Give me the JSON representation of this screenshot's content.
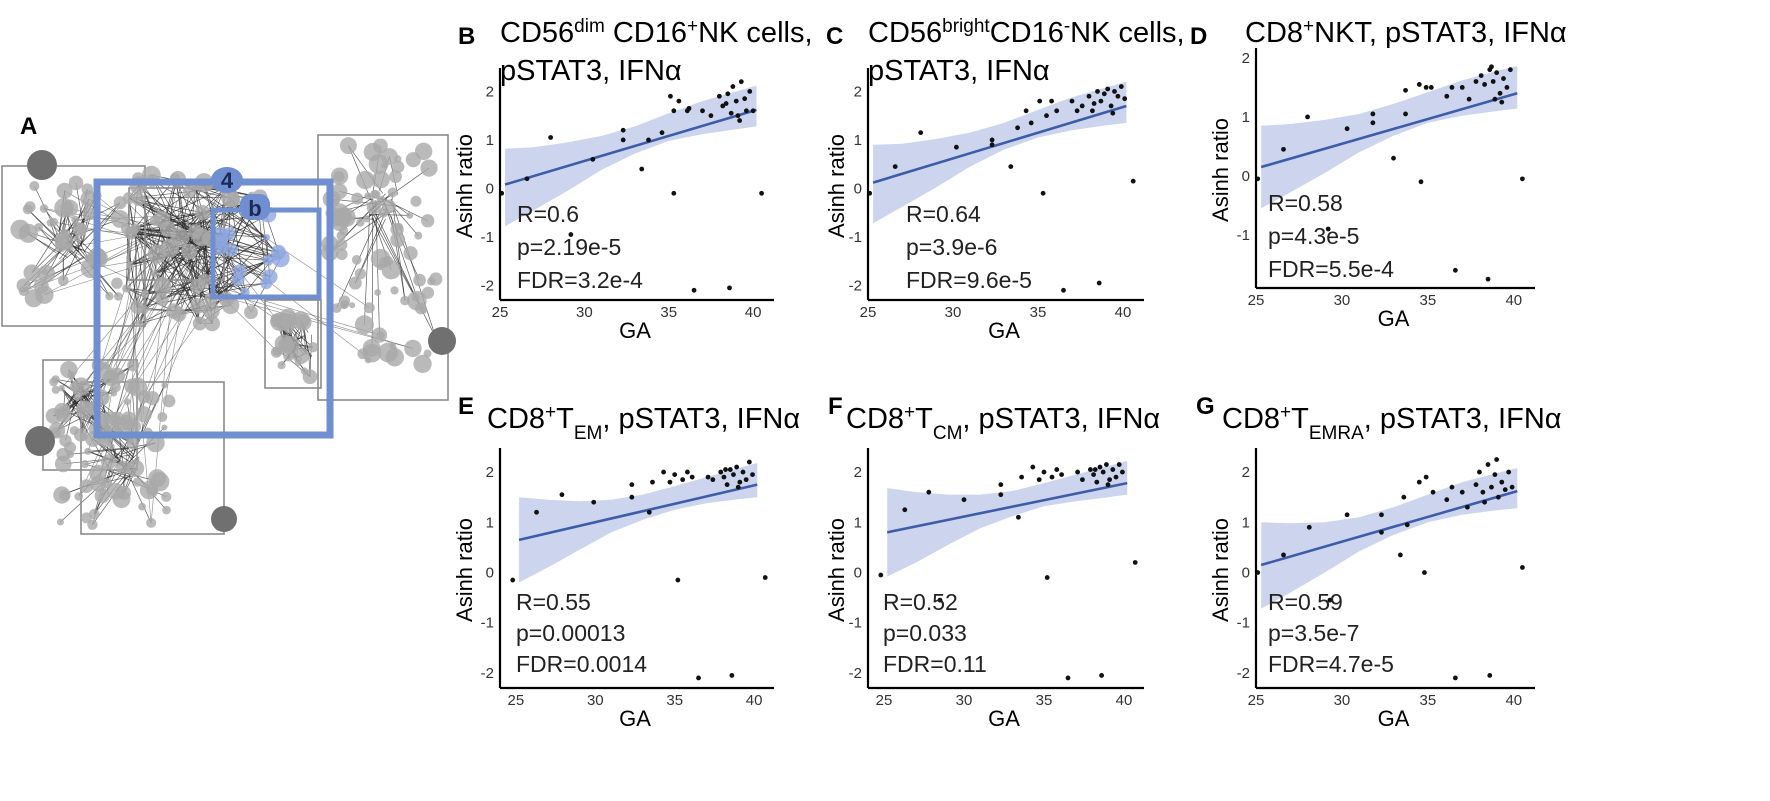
{
  "figure": {
    "domain": "Chart"
  },
  "panel_a": {
    "label": "A",
    "cluster_badge": "4",
    "inner_badge": "b",
    "colors": {
      "highlight": "#6f8fd1",
      "node": "#a9a9a9",
      "node_dark": "#707070",
      "edge": "#2a2a2a",
      "box": "#8a8a8a",
      "highlight_node": "#8fa6e0"
    }
  },
  "style": {
    "ribbon": "#c9d3ec",
    "line": "#3d5da8",
    "point": "#111111"
  },
  "chart_data": [
    {
      "id": "B",
      "panel_label": "B",
      "type": "scatter",
      "title": {
        "line1": "CD56",
        "line1_sup": "dim",
        "line1_mid": " CD16",
        "line1_sup2": "+",
        "line1_end": "NK cells,",
        "line2": "pSTAT3, IFNα"
      },
      "xlabel": "GA",
      "ylabel": "Asinh ratio",
      "xlim": [
        25,
        41
      ],
      "ylim": [
        -2.3,
        2.4
      ],
      "xticks": [
        25,
        30,
        35,
        40
      ],
      "yticks": [
        -2,
        -1,
        0,
        1,
        2
      ],
      "fit": {
        "x": [
          25.3,
          40.2
        ],
        "y": [
          0.08,
          1.62
        ]
      },
      "ribbon": {
        "x": [
          25.3,
          27,
          29,
          31,
          33,
          35,
          37,
          39,
          40.2
        ],
        "lo": [
          -0.78,
          -0.45,
          -0.05,
          0.38,
          0.72,
          0.98,
          1.12,
          1.22,
          1.28
        ],
        "hi": [
          0.82,
          0.85,
          0.95,
          1.08,
          1.28,
          1.55,
          1.8,
          2.0,
          2.12
        ]
      },
      "stats": {
        "r": "R=0.6",
        "p": "p=2.19e-5",
        "fdr": "FDR=3.2e-4"
      },
      "points": [
        [
          25.1,
          -0.1
        ],
        [
          26.6,
          0.2
        ],
        [
          28,
          1.05
        ],
        [
          29.2,
          -0.95
        ],
        [
          30.5,
          0.6
        ],
        [
          32.3,
          1.2
        ],
        [
          32.3,
          1.0
        ],
        [
          33.4,
          0.4
        ],
        [
          33.8,
          1.0
        ],
        [
          34.6,
          1.15
        ],
        [
          35.1,
          1.9
        ],
        [
          35.3,
          1.6
        ],
        [
          35.3,
          -0.1
        ],
        [
          35.6,
          1.8
        ],
        [
          36.1,
          1.6
        ],
        [
          36.2,
          1.65
        ],
        [
          36.5,
          -2.1
        ],
        [
          37.0,
          1.6
        ],
        [
          37.5,
          1.5
        ],
        [
          38.0,
          1.9
        ],
        [
          38.2,
          1.7
        ],
        [
          38.5,
          1.95
        ],
        [
          38.7,
          1.55
        ],
        [
          38.8,
          2.1
        ],
        [
          39.0,
          1.8
        ],
        [
          39.2,
          1.4
        ],
        [
          39.3,
          2.2
        ],
        [
          39.5,
          1.85
        ],
        [
          39.6,
          1.6
        ],
        [
          39.8,
          2.0
        ],
        [
          40.0,
          1.6
        ],
        [
          38.6,
          -2.05
        ],
        [
          40.5,
          -0.1
        ],
        [
          38.4,
          1.75
        ],
        [
          39.1,
          1.5
        ]
      ]
    },
    {
      "id": "C",
      "panel_label": "C",
      "type": "scatter",
      "title": {
        "line1": "CD56",
        "line1_sup": "bright",
        "line1_mid": "CD16",
        "line1_sup2": "-",
        "line1_end": "NK cells,",
        "line2": "pSTAT3, IFNα"
      },
      "xlabel": "GA",
      "ylabel": "Asinh ratio",
      "xlim": [
        25,
        41
      ],
      "ylim": [
        -2.3,
        2.4
      ],
      "xticks": [
        25,
        30,
        35,
        40
      ],
      "yticks": [
        -2,
        -1,
        0,
        1,
        2
      ],
      "fit": {
        "x": [
          25.3,
          40.2
        ],
        "y": [
          0.12,
          1.7
        ]
      },
      "ribbon": {
        "x": [
          25.3,
          27,
          29,
          31,
          33,
          35,
          37,
          39,
          40.2
        ],
        "lo": [
          -0.72,
          -0.38,
          0.02,
          0.45,
          0.8,
          1.05,
          1.2,
          1.3,
          1.35
        ],
        "hi": [
          0.9,
          0.92,
          1.02,
          1.15,
          1.35,
          1.62,
          1.88,
          2.08,
          2.2
        ]
      },
      "stats": {
        "r": "R=0.64",
        "p": "p=3.9e-6",
        "fdr": "FDR=9.6e-5"
      },
      "points": [
        [
          25.1,
          -0.1
        ],
        [
          26.6,
          0.45
        ],
        [
          28.1,
          1.15
        ],
        [
          30.2,
          0.85
        ],
        [
          32.3,
          0.9
        ],
        [
          32.3,
          1.0
        ],
        [
          33.4,
          0.45
        ],
        [
          33.8,
          1.25
        ],
        [
          34.3,
          1.6
        ],
        [
          34.6,
          1.35
        ],
        [
          35.1,
          1.8
        ],
        [
          35.3,
          -0.1
        ],
        [
          35.5,
          1.5
        ],
        [
          35.8,
          1.8
        ],
        [
          36.1,
          1.6
        ],
        [
          36.5,
          -2.1
        ],
        [
          37.0,
          1.8
        ],
        [
          37.3,
          1.6
        ],
        [
          37.6,
          1.7
        ],
        [
          38.0,
          1.9
        ],
        [
          38.3,
          1.75
        ],
        [
          38.5,
          2.0
        ],
        [
          38.7,
          1.8
        ],
        [
          38.9,
          1.95
        ],
        [
          39.1,
          2.05
        ],
        [
          39.3,
          1.7
        ],
        [
          39.5,
          2.0
        ],
        [
          39.7,
          1.9
        ],
        [
          39.9,
          2.1
        ],
        [
          40.1,
          1.85
        ],
        [
          38.6,
          -1.95
        ],
        [
          40.6,
          0.15
        ],
        [
          38.2,
          1.6
        ],
        [
          39.4,
          1.55
        ]
      ]
    },
    {
      "id": "D",
      "panel_label": "D",
      "type": "scatter",
      "title": {
        "line1": "CD8",
        "line1_sup": "+",
        "line1_mid": "NKT, pSTAT3, IFNα",
        "line1_sup2": "",
        "line1_end": "",
        "line2": ""
      },
      "xlabel": "GA",
      "ylabel": "Asinh ratio",
      "xlim": [
        25,
        41
      ],
      "ylim": [
        -1.9,
        2.1
      ],
      "xticks": [
        25,
        30,
        35,
        40
      ],
      "yticks": [
        -1,
        0,
        1,
        2
      ],
      "fit": {
        "x": [
          25.3,
          40.2
        ],
        "y": [
          0.15,
          1.4
        ]
      },
      "ribbon": {
        "x": [
          25.3,
          27,
          29,
          31,
          33,
          35,
          37,
          39,
          40.2
        ],
        "lo": [
          -0.55,
          -0.28,
          0.05,
          0.4,
          0.68,
          0.9,
          1.02,
          1.1,
          1.14
        ],
        "hi": [
          0.85,
          0.88,
          0.95,
          1.05,
          1.22,
          1.42,
          1.62,
          1.78,
          1.86
        ]
      },
      "stats": {
        "r": "R=0.58",
        "p": "p=4.3e-5",
        "fdr": "FDR=5.5e-4"
      },
      "points": [
        [
          25.1,
          -0.05
        ],
        [
          26.6,
          0.45
        ],
        [
          28.0,
          1.0
        ],
        [
          29.2,
          -0.9
        ],
        [
          30.3,
          0.8
        ],
        [
          31.8,
          0.9
        ],
        [
          31.8,
          1.05
        ],
        [
          33.0,
          0.3
        ],
        [
          33.7,
          1.45
        ],
        [
          33.7,
          1.05
        ],
        [
          34.5,
          1.55
        ],
        [
          34.9,
          1.5
        ],
        [
          34.6,
          -0.1
        ],
        [
          35.2,
          1.5
        ],
        [
          36.1,
          1.35
        ],
        [
          36.4,
          1.5
        ],
        [
          36.6,
          -1.6
        ],
        [
          37.0,
          1.5
        ],
        [
          37.4,
          1.3
        ],
        [
          37.8,
          1.6
        ],
        [
          38.1,
          1.7
        ],
        [
          38.3,
          1.55
        ],
        [
          38.6,
          1.8
        ],
        [
          38.8,
          1.6
        ],
        [
          39.0,
          1.75
        ],
        [
          39.2,
          1.4
        ],
        [
          39.4,
          1.65
        ],
        [
          39.6,
          1.5
        ],
        [
          38.9,
          1.3
        ],
        [
          39.8,
          1.8
        ],
        [
          38.5,
          -1.75
        ],
        [
          40.5,
          -0.05
        ],
        [
          39.3,
          1.25
        ],
        [
          38.7,
          1.85
        ]
      ]
    },
    {
      "id": "E",
      "panel_label": "E",
      "type": "scatter",
      "title": {
        "line1": "CD8",
        "line1_sup": "+",
        "line1_mid": "T",
        "line1_sub": "EM",
        "line1_end": ", pSTAT3, IFNα",
        "line2": ""
      },
      "xlabel": "GA",
      "ylabel": "Asinh ratio",
      "xlim": [
        24,
        41
      ],
      "ylim": [
        -2.3,
        2.4
      ],
      "xticks": [
        25,
        30,
        35,
        40
      ],
      "yticks": [
        -2,
        -1,
        0,
        1,
        2
      ],
      "fit": {
        "x": [
          25.2,
          40.2
        ],
        "y": [
          0.65,
          1.75
        ]
      },
      "ribbon": {
        "x": [
          25.2,
          27,
          29,
          31,
          33,
          35,
          37,
          39,
          40.2
        ],
        "lo": [
          -0.2,
          0.1,
          0.45,
          0.8,
          1.05,
          1.25,
          1.38,
          1.46,
          1.5
        ],
        "hi": [
          1.5,
          1.45,
          1.42,
          1.45,
          1.55,
          1.72,
          1.9,
          2.08,
          2.18
        ]
      },
      "stats": {
        "r": "R=0.55",
        "p": "p=0.00013",
        "fdr": "FDR=0.0014"
      },
      "points": [
        [
          24.8,
          -0.15
        ],
        [
          26.3,
          1.2
        ],
        [
          27.9,
          1.55
        ],
        [
          29.9,
          1.4
        ],
        [
          32.3,
          1.5
        ],
        [
          32.3,
          1.75
        ],
        [
          33.4,
          1.2
        ],
        [
          33.6,
          1.8
        ],
        [
          34.3,
          2.0
        ],
        [
          34.7,
          1.8
        ],
        [
          35.0,
          1.95
        ],
        [
          35.2,
          -0.15
        ],
        [
          35.5,
          1.85
        ],
        [
          35.8,
          2.0
        ],
        [
          36.1,
          1.9
        ],
        [
          36.5,
          -2.1
        ],
        [
          37.1,
          1.9
        ],
        [
          37.4,
          1.85
        ],
        [
          37.9,
          2.0
        ],
        [
          38.1,
          1.9
        ],
        [
          38.3,
          1.75
        ],
        [
          38.5,
          2.05
        ],
        [
          38.7,
          1.95
        ],
        [
          38.9,
          2.1
        ],
        [
          39.1,
          1.8
        ],
        [
          39.3,
          2.0
        ],
        [
          39.5,
          1.85
        ],
        [
          39.7,
          2.2
        ],
        [
          39.9,
          1.95
        ],
        [
          38.6,
          -2.05
        ],
        [
          40.7,
          -0.1
        ],
        [
          38.2,
          2.05
        ],
        [
          39.0,
          1.7
        ]
      ]
    },
    {
      "id": "F",
      "panel_label": "F",
      "type": "scatter",
      "title": {
        "line1": "CD8",
        "line1_sup": "+",
        "line1_mid": "T",
        "line1_sub": "CM",
        "line1_end": ", pSTAT3, IFNα",
        "line2": ""
      },
      "xlabel": "GA",
      "ylabel": "Asinh ratio",
      "xlim": [
        24,
        41
      ],
      "ylim": [
        -2.3,
        2.4
      ],
      "xticks": [
        25,
        30,
        35,
        40
      ],
      "yticks": [
        -2,
        -1,
        0,
        1,
        2
      ],
      "fit": {
        "x": [
          25.2,
          40.2
        ],
        "y": [
          0.8,
          1.78
        ]
      },
      "ribbon": {
        "x": [
          25.2,
          27,
          29,
          31,
          33,
          35,
          37,
          39,
          40.2
        ],
        "lo": [
          -0.08,
          0.2,
          0.55,
          0.88,
          1.12,
          1.32,
          1.42,
          1.5,
          1.55
        ],
        "hi": [
          1.68,
          1.6,
          1.55,
          1.55,
          1.62,
          1.78,
          1.95,
          2.12,
          2.22
        ]
      },
      "stats": {
        "r": "R=0.52",
        "p": "p=0.033",
        "fdr": "FDR=0.11"
      },
      "points": [
        [
          24.8,
          -0.05
        ],
        [
          26.3,
          1.25
        ],
        [
          27.8,
          1.6
        ],
        [
          28.5,
          -0.55
        ],
        [
          30.0,
          1.45
        ],
        [
          32.3,
          1.55
        ],
        [
          32.3,
          1.75
        ],
        [
          33.4,
          1.1
        ],
        [
          33.6,
          1.9
        ],
        [
          34.3,
          2.1
        ],
        [
          34.7,
          1.85
        ],
        [
          35.0,
          2.0
        ],
        [
          35.2,
          -0.1
        ],
        [
          35.5,
          1.9
        ],
        [
          35.8,
          2.05
        ],
        [
          36.1,
          1.95
        ],
        [
          36.5,
          -2.1
        ],
        [
          37.1,
          2.0
        ],
        [
          37.4,
          1.85
        ],
        [
          37.9,
          2.05
        ],
        [
          38.1,
          1.95
        ],
        [
          38.3,
          1.8
        ],
        [
          38.5,
          2.1
        ],
        [
          38.7,
          2.0
        ],
        [
          38.9,
          2.15
        ],
        [
          39.1,
          1.85
        ],
        [
          39.3,
          2.05
        ],
        [
          39.5,
          1.9
        ],
        [
          39.7,
          2.15
        ],
        [
          39.9,
          2.0
        ],
        [
          38.6,
          -2.05
        ],
        [
          40.7,
          0.2
        ],
        [
          38.2,
          2.05
        ],
        [
          39.0,
          1.75
        ]
      ]
    },
    {
      "id": "G",
      "panel_label": "G",
      "type": "scatter",
      "title": {
        "line1": "CD8",
        "line1_sup": "+",
        "line1_mid": "T",
        "line1_sub": "EMRA",
        "line1_end": ", pSTAT3, IFNα",
        "line2": ""
      },
      "xlabel": "GA",
      "ylabel": "Asinh ratio",
      "xlim": [
        25,
        41
      ],
      "ylim": [
        -2.3,
        2.4
      ],
      "xticks": [
        25,
        30,
        35,
        40
      ],
      "yticks": [
        -2,
        -1,
        0,
        1,
        2
      ],
      "fit": {
        "x": [
          25.3,
          40.2
        ],
        "y": [
          0.15,
          1.62
        ]
      },
      "ribbon": {
        "x": [
          25.3,
          27,
          29,
          31,
          33,
          35,
          37,
          39,
          40.2
        ],
        "lo": [
          -0.72,
          -0.4,
          0.0,
          0.42,
          0.75,
          1.0,
          1.15,
          1.24,
          1.28
        ],
        "hi": [
          1.0,
          0.98,
          1.0,
          1.1,
          1.3,
          1.55,
          1.8,
          1.98,
          2.08
        ]
      },
      "stats": {
        "r": "R=0.59",
        "p": "p=3.5e-7",
        "fdr": "FDR=4.7e-5"
      },
      "points": [
        [
          25.1,
          0.0
        ],
        [
          26.6,
          0.35
        ],
        [
          28.1,
          0.9
        ],
        [
          29.3,
          -0.55
        ],
        [
          30.3,
          1.15
        ],
        [
          32.3,
          1.15
        ],
        [
          32.3,
          0.8
        ],
        [
          33.4,
          0.35
        ],
        [
          33.6,
          1.5
        ],
        [
          33.8,
          0.95
        ],
        [
          34.5,
          1.8
        ],
        [
          34.9,
          1.9
        ],
        [
          34.8,
          0.0
        ],
        [
          35.3,
          1.6
        ],
        [
          36.1,
          1.45
        ],
        [
          36.4,
          1.7
        ],
        [
          36.6,
          -2.1
        ],
        [
          37.0,
          1.6
        ],
        [
          37.3,
          1.3
        ],
        [
          37.8,
          1.75
        ],
        [
          38.0,
          2.0
        ],
        [
          38.2,
          1.6
        ],
        [
          38.5,
          2.15
        ],
        [
          38.7,
          1.7
        ],
        [
          38.9,
          1.95
        ],
        [
          39.1,
          1.5
        ],
        [
          39.3,
          1.8
        ],
        [
          39.5,
          1.65
        ],
        [
          39.7,
          2.0
        ],
        [
          39.9,
          1.7
        ],
        [
          38.6,
          -2.05
        ],
        [
          40.5,
          0.1
        ],
        [
          38.3,
          1.4
        ],
        [
          39.0,
          2.25
        ]
      ]
    }
  ]
}
